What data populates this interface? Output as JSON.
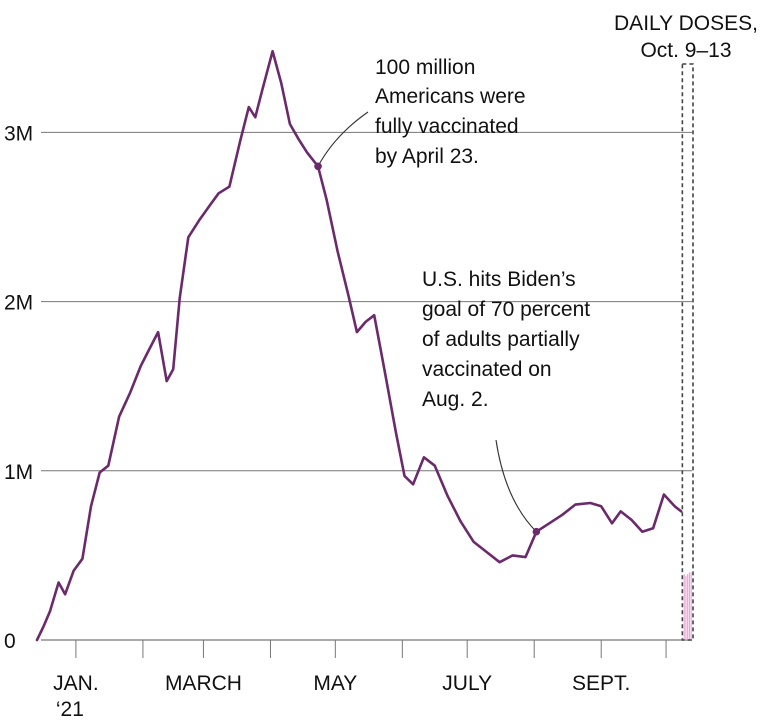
{
  "chart_data": {
    "type": "line",
    "title": "",
    "xlabel": "",
    "ylabel": "",
    "x_range": [
      "2020-12-14",
      "2021-10-13"
    ],
    "ylim": [
      0,
      3700000
    ],
    "y_ticks": [
      {
        "value": 0,
        "label": "0"
      },
      {
        "value": 1000000,
        "label": "1M"
      },
      {
        "value": 2000000,
        "label": "2M"
      },
      {
        "value": 3000000,
        "label": "3M"
      }
    ],
    "x_ticks": [
      {
        "date": "2021-01-01",
        "label": "JAN.",
        "sublabel": "‘21"
      },
      {
        "date": "2021-02-01",
        "label": ""
      },
      {
        "date": "2021-03-01",
        "label": "MARCH"
      },
      {
        "date": "2021-04-01",
        "label": ""
      },
      {
        "date": "2021-05-01",
        "label": "MAY"
      },
      {
        "date": "2021-06-01",
        "label": ""
      },
      {
        "date": "2021-07-01",
        "label": "JULY"
      },
      {
        "date": "2021-08-01",
        "label": ""
      },
      {
        "date": "2021-09-01",
        "label": "SEPT."
      },
      {
        "date": "2021-10-01",
        "label": ""
      }
    ],
    "grid": "horizontal",
    "series": [
      {
        "color": "#6b2a6b",
        "points": [
          [
            "2020-12-14",
            0
          ],
          [
            "2020-12-17",
            80000
          ],
          [
            "2020-12-20",
            170000
          ],
          [
            "2020-12-24",
            340000
          ],
          [
            "2020-12-27",
            270000
          ],
          [
            "2020-12-31",
            410000
          ],
          [
            "2021-01-04",
            480000
          ],
          [
            "2021-01-08",
            790000
          ],
          [
            "2021-01-12",
            990000
          ],
          [
            "2021-01-16",
            1030000
          ],
          [
            "2021-01-21",
            1320000
          ],
          [
            "2021-01-26",
            1460000
          ],
          [
            "2021-01-31",
            1620000
          ],
          [
            "2021-02-04",
            1720000
          ],
          [
            "2021-02-08",
            1820000
          ],
          [
            "2021-02-12",
            1530000
          ],
          [
            "2021-02-15",
            1600000
          ],
          [
            "2021-02-18",
            2020000
          ],
          [
            "2021-02-22",
            2380000
          ],
          [
            "2021-02-27",
            2480000
          ],
          [
            "2021-03-04",
            2570000
          ],
          [
            "2021-03-08",
            2640000
          ],
          [
            "2021-03-13",
            2680000
          ],
          [
            "2021-03-18",
            2950000
          ],
          [
            "2021-03-22",
            3150000
          ],
          [
            "2021-03-25",
            3090000
          ],
          [
            "2021-03-28",
            3240000
          ],
          [
            "2021-04-02",
            3480000
          ],
          [
            "2021-04-06",
            3290000
          ],
          [
            "2021-04-10",
            3050000
          ],
          [
            "2021-04-14",
            2960000
          ],
          [
            "2021-04-18",
            2880000
          ],
          [
            "2021-04-23",
            2800000
          ],
          [
            "2021-04-27",
            2600000
          ],
          [
            "2021-05-02",
            2300000
          ],
          [
            "2021-05-07",
            2040000
          ],
          [
            "2021-05-11",
            1820000
          ],
          [
            "2021-05-15",
            1880000
          ],
          [
            "2021-05-19",
            1920000
          ],
          [
            "2021-05-24",
            1580000
          ],
          [
            "2021-05-29",
            1230000
          ],
          [
            "2021-06-02",
            970000
          ],
          [
            "2021-06-06",
            920000
          ],
          [
            "2021-06-11",
            1080000
          ],
          [
            "2021-06-16",
            1030000
          ],
          [
            "2021-06-22",
            850000
          ],
          [
            "2021-06-28",
            700000
          ],
          [
            "2021-07-04",
            580000
          ],
          [
            "2021-07-10",
            520000
          ],
          [
            "2021-07-16",
            460000
          ],
          [
            "2021-07-22",
            500000
          ],
          [
            "2021-07-28",
            490000
          ],
          [
            "2021-08-02",
            640000
          ],
          [
            "2021-08-08",
            690000
          ],
          [
            "2021-08-14",
            740000
          ],
          [
            "2021-08-20",
            800000
          ],
          [
            "2021-08-27",
            810000
          ],
          [
            "2021-09-01",
            790000
          ],
          [
            "2021-09-06",
            690000
          ],
          [
            "2021-09-10",
            760000
          ],
          [
            "2021-09-15",
            710000
          ],
          [
            "2021-09-20",
            640000
          ],
          [
            "2021-09-25",
            660000
          ],
          [
            "2021-09-30",
            860000
          ],
          [
            "2021-10-05",
            790000
          ],
          [
            "2021-10-08",
            760000
          ]
        ]
      }
    ],
    "daily_doses": {
      "label_line1": "DAILY DOSES,",
      "label_line2": "Oct. 9–13",
      "range": [
        "2021-10-09",
        "2021-10-13"
      ],
      "bars": [
        {
          "date": "2021-10-09",
          "value": 390000
        },
        {
          "date": "2021-10-10",
          "value": 380000
        },
        {
          "date": "2021-10-11",
          "value": 390000
        },
        {
          "date": "2021-10-12",
          "value": 400000
        },
        {
          "date": "2021-10-13",
          "value": 400000
        }
      ],
      "color": "#e8a6d6"
    },
    "annotations": [
      {
        "date": "2021-04-23",
        "value": 2800000,
        "lines": [
          "100 million",
          "Americans were",
          "fully vaccinated",
          "by April 23."
        ]
      },
      {
        "date": "2021-08-02",
        "value": 640000,
        "lines": [
          "U.S. hits Biden’s",
          "goal of 70 percent",
          "of adults partially",
          "vaccinated on",
          "Aug. 2."
        ]
      }
    ]
  }
}
